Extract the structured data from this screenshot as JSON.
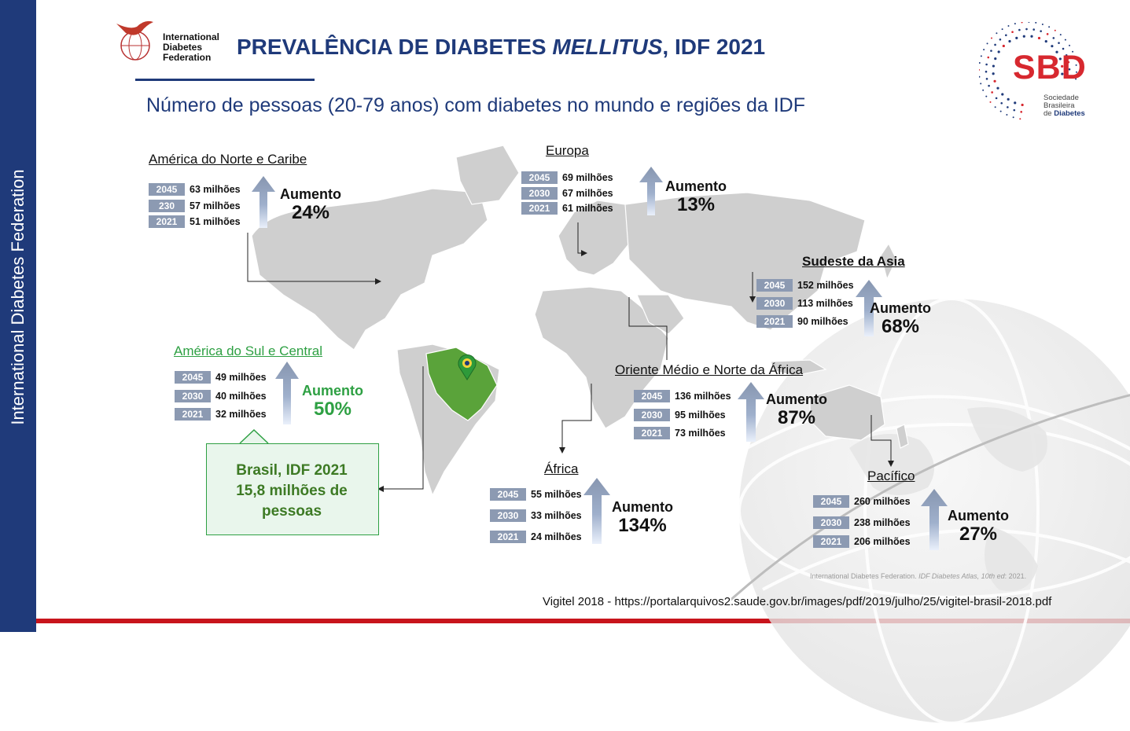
{
  "sidebar_text": "International Diabetes Federation",
  "idf_logo_text": "International Diabetes Federation",
  "title_prefix": "PREVALÊNCIA DE DIABETES ",
  "title_italic": "MELLITUS",
  "title_suffix": ", IDF 2021",
  "subtitle": "Número de pessoas (20-79 anos) com diabetes no mundo e regiões da IDF",
  "sbd_logo": {
    "letters": "SBD",
    "line1": "Sociedade",
    "line2": "Brasileira",
    "line3_prefix": "de ",
    "line3_bold": "Diabetes"
  },
  "colors": {
    "navy": "#1f3a7a",
    "red": "#d7282f",
    "green": "#2ea043",
    "badge": "#8c9ab2",
    "map": "#cfcfcf"
  },
  "increase_word": "Aumento",
  "regions": [
    {
      "id": "nac",
      "name": "América do Norte e Caribe",
      "increase": "24%",
      "rows": [
        {
          "year": "2045",
          "value": "63 milhões"
        },
        {
          "year": "230",
          "value": "57 milhões"
        },
        {
          "year": "2021",
          "value": "51 milhões"
        }
      ]
    },
    {
      "id": "eur",
      "name": "Europa",
      "increase": "13%",
      "rows": [
        {
          "year": "2045",
          "value": "69 milhões"
        },
        {
          "year": "2030",
          "value": "67 milhões"
        },
        {
          "year": "2021",
          "value": "61 milhões"
        }
      ]
    },
    {
      "id": "sea",
      "name": "Sudeste da Asia",
      "increase": "68%",
      "rows": [
        {
          "year": "2045",
          "value": "152 milhões"
        },
        {
          "year": "2030",
          "value": "113 milhões"
        },
        {
          "year": "2021",
          "value": "90 milhões"
        }
      ]
    },
    {
      "id": "sacа",
      "name": "América do Sul e Central",
      "increase": "50%",
      "rows": [
        {
          "year": "2045",
          "value": "49 milhões"
        },
        {
          "year": "2030",
          "value": "40 milhões"
        },
        {
          "year": "2021",
          "value": "32 milhões"
        }
      ]
    },
    {
      "id": "mena",
      "name": "Oriente Médio e Norte da África",
      "increase": "87%",
      "rows": [
        {
          "year": "2045",
          "value": "136 milhões"
        },
        {
          "year": "2030",
          "value": "95 milhões"
        },
        {
          "year": "2021",
          "value": "73 milhões"
        }
      ]
    },
    {
      "id": "afr",
      "name": "África",
      "increase": "134%",
      "rows": [
        {
          "year": "2045",
          "value": "55 milhões"
        },
        {
          "year": "2030",
          "value": "33 milhões"
        },
        {
          "year": "2021",
          "value": "24 milhões"
        }
      ]
    },
    {
      "id": "pac",
      "name": "Pacífico",
      "increase": "27%",
      "rows": [
        {
          "year": "2045",
          "value": "260 milhões"
        },
        {
          "year": "2030",
          "value": "238 milhões"
        },
        {
          "year": "2021",
          "value": "206 milhões"
        }
      ]
    }
  ],
  "brasil_box": {
    "line1": "Brasil, IDF 2021",
    "line2": "15,8 milhões de",
    "line3": "pessoas"
  },
  "source_credit_prefix": "International Diabetes Federation. ",
  "source_credit_italic": "IDF Diabetes Atlas, 10th ed",
  "source_credit_suffix": ": 2021.",
  "reference": "Vigitel 2018 - https://portalarquivos2.saude.gov.br/images/pdf/2019/julho/25/vigitel-brasil-2018.pdf"
}
